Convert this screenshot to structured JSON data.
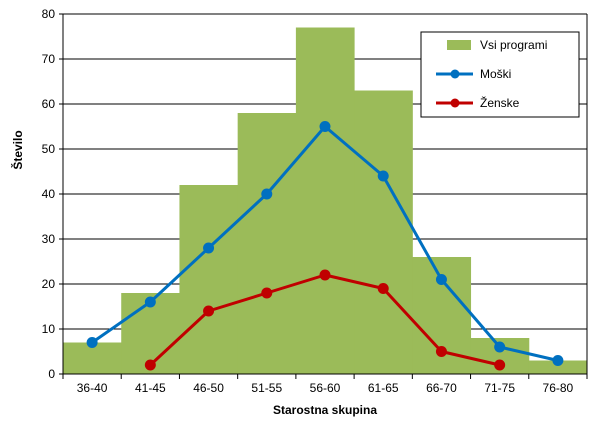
{
  "chart_data": {
    "type": "bar",
    "title": "",
    "xlabel": "Starostna skupina",
    "ylabel": "Število",
    "categories": [
      "36-40",
      "41-45",
      "46-50",
      "51-55",
      "56-60",
      "61-65",
      "66-70",
      "71-75",
      "76-80"
    ],
    "ylim": [
      0,
      80
    ],
    "yticks": [
      "0",
      "10",
      "20",
      "30",
      "40",
      "50",
      "60",
      "70",
      "80"
    ],
    "grid": true,
    "legend_position": "top-right",
    "series": [
      {
        "name": "Vsi programi",
        "kind": "bar",
        "color": "#9BBB59",
        "values": [
          7,
          18,
          42,
          58,
          77,
          63,
          26,
          8,
          3
        ]
      },
      {
        "name": "Moški",
        "kind": "line",
        "color": "#0070C0",
        "values": [
          7,
          16,
          28,
          40,
          55,
          44,
          21,
          6,
          3
        ]
      },
      {
        "name": "Ženske",
        "kind": "line",
        "color": "#C00000",
        "values": [
          null,
          2,
          14,
          18,
          22,
          19,
          5,
          2,
          null
        ]
      }
    ]
  }
}
